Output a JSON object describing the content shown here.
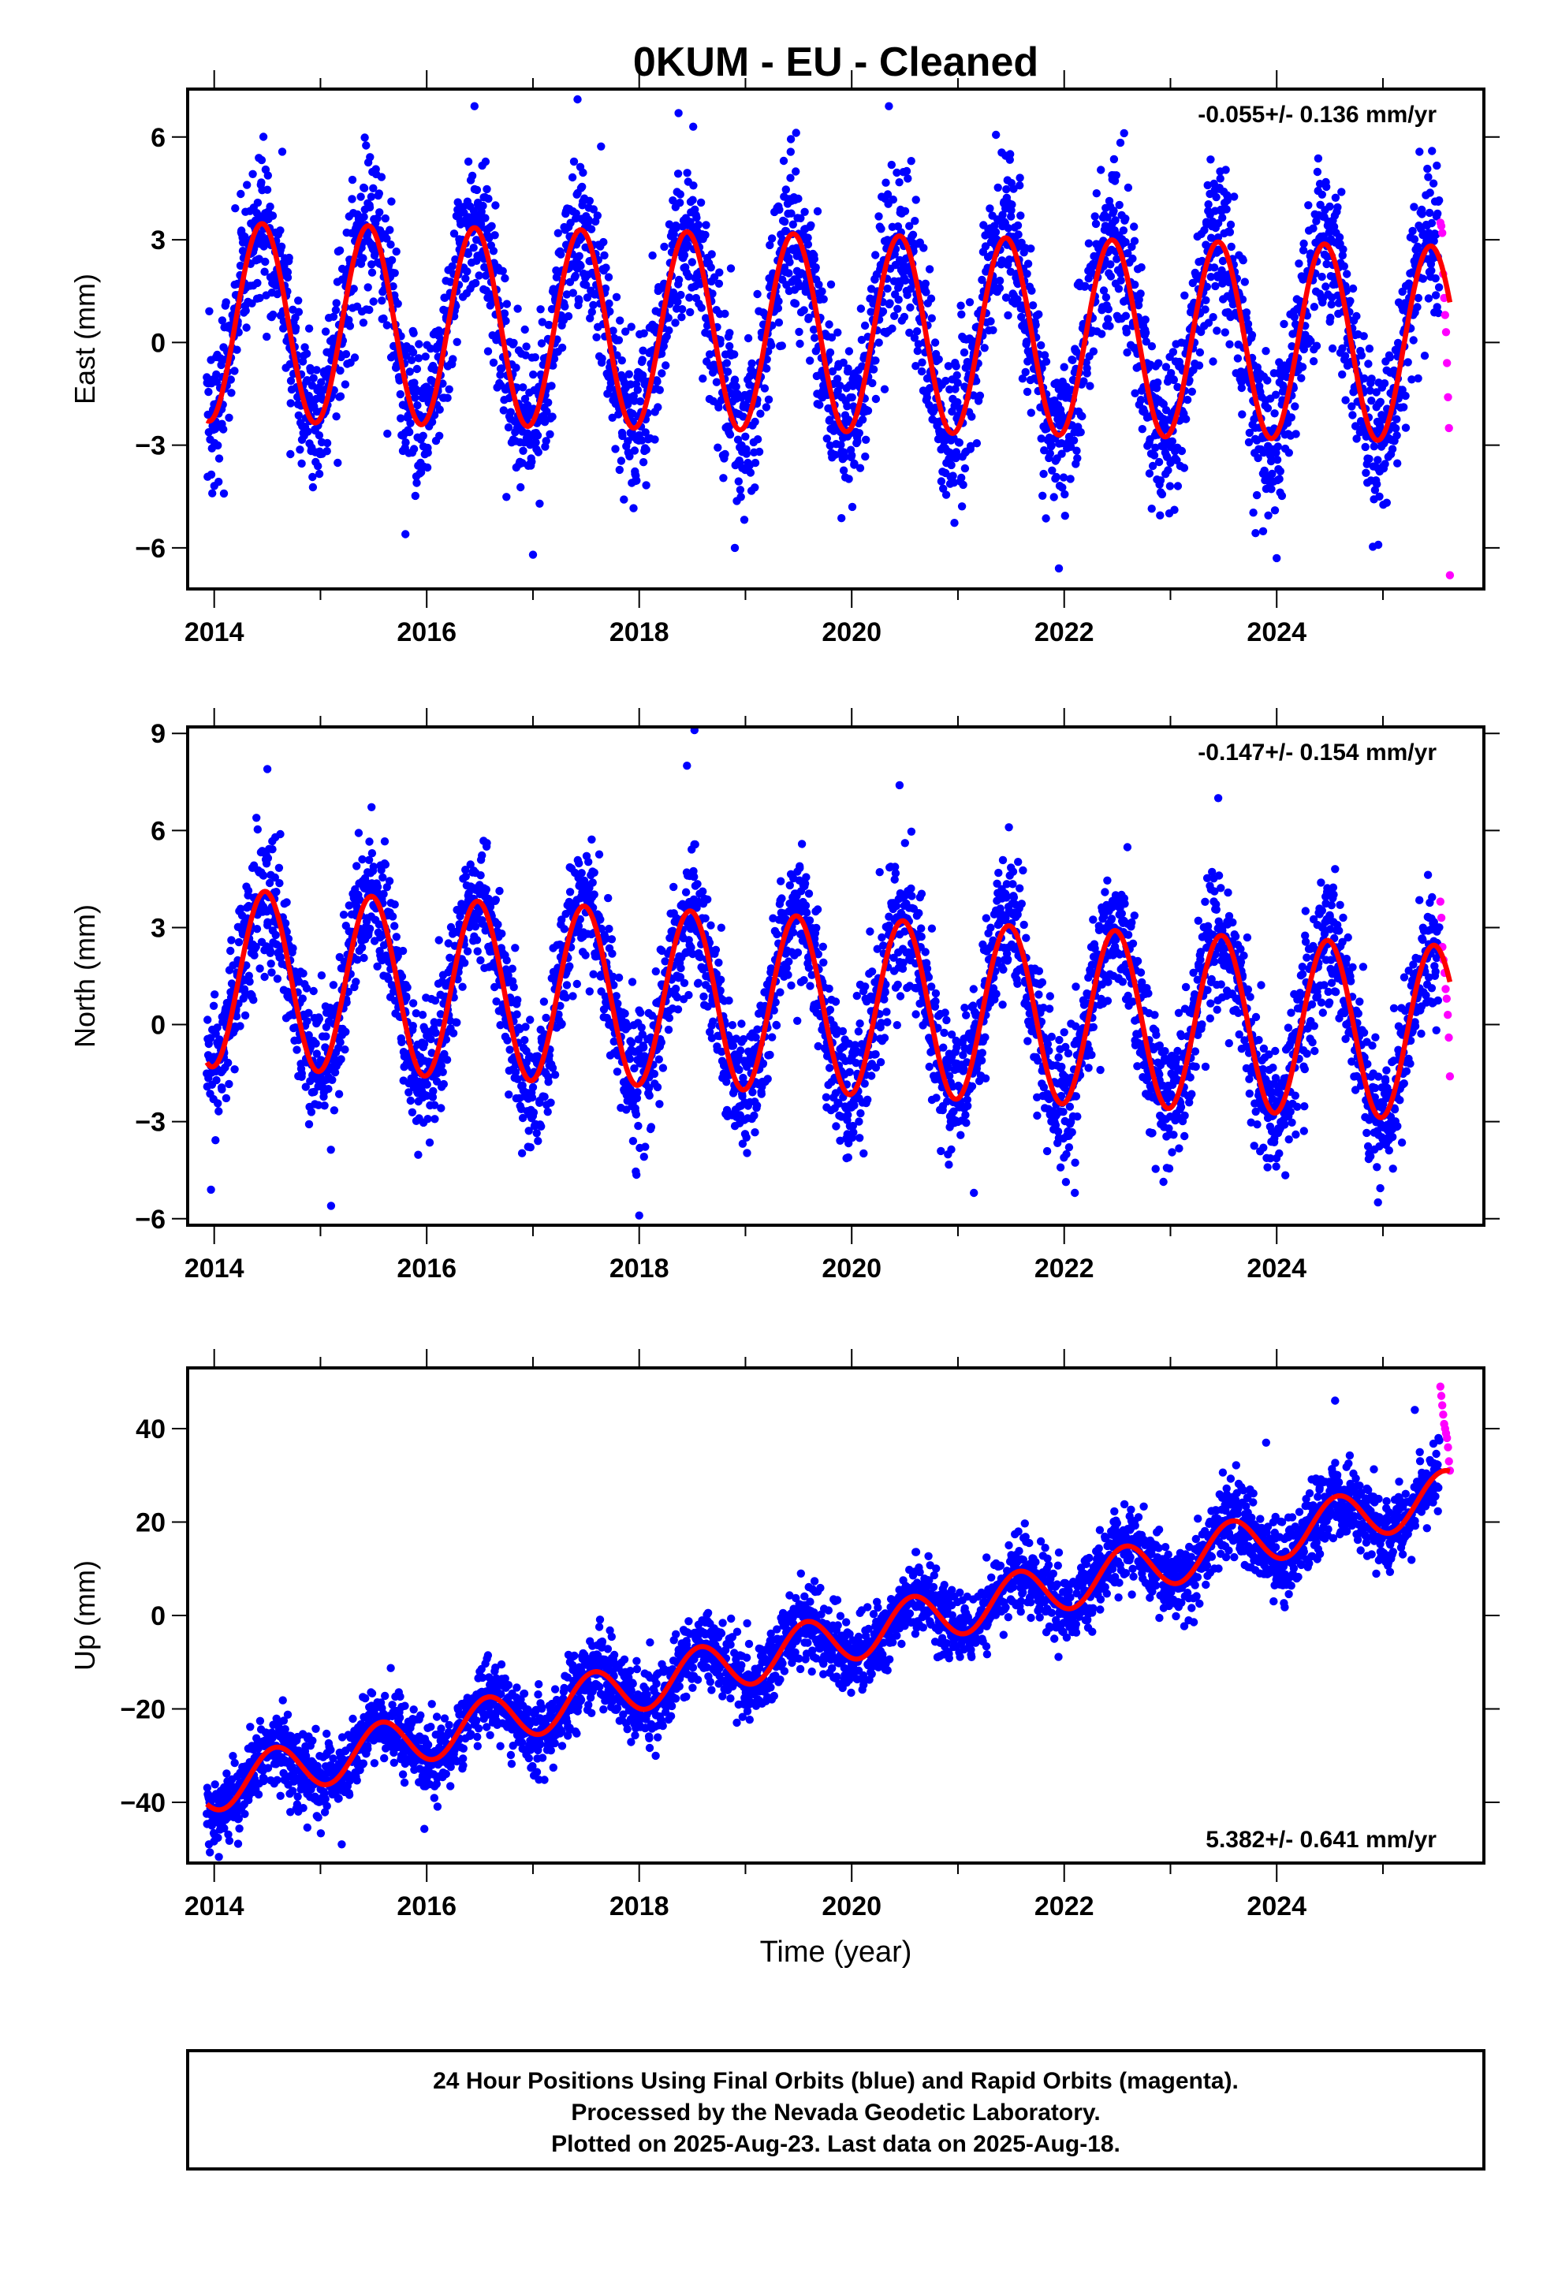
{
  "title": "0KUM  - EU - Cleaned",
  "x_axis_label": "Time (year)",
  "caption": {
    "line1": "24 Hour Positions Using Final Orbits (blue) and Rapid Orbits (magenta).",
    "line2": "Processed by the Nevada Geodetic Laboratory.",
    "line3": "Plotted on 2025-Aug-23. Last data on 2025-Aug-18."
  },
  "colors": {
    "final_orbits": "#0000ff",
    "rapid_orbits": "#ff00ff",
    "model_fit": "#ff0000",
    "frame": "#000000"
  },
  "chart_data": [
    {
      "type": "scatter",
      "component": "east",
      "ylabel": "East (mm)",
      "rate_text": "-0.055+/- 0.136 mm/yr",
      "xlim": [
        2013.75,
        2025.95
      ],
      "ylim": [
        -7.2,
        7.4
      ],
      "xticks": [
        2014,
        2016,
        2018,
        2020,
        2022,
        2024
      ],
      "yticks": [
        -6,
        -3,
        0,
        3,
        6
      ],
      "grid": false,
      "model": {
        "offset": 0.6,
        "trend_mm_per_yr": -0.055,
        "amplitude_start": 2.9,
        "amplitude_end": 2.85,
        "peak_phase": 0.45,
        "series_start": 2013.93,
        "series_end": 2025.63
      },
      "series": [
        {
          "orbits": "final",
          "start": 2013.93,
          "end": 2025.53,
          "scatter_sd": 1.15,
          "points": 3600
        },
        {
          "orbits": "rapid",
          "start": 2025.54,
          "end": 2025.63,
          "values": [
            3.5,
            3.4,
            3.2,
            2.0,
            1.3,
            0.8,
            0.3,
            -0.6,
            -1.6,
            -2.5,
            -6.8
          ]
        }
      ],
      "outliers": [
        [
          2016.45,
          6.9
        ],
        [
          2017.42,
          7.1
        ],
        [
          2018.37,
          6.7
        ],
        [
          2020.35,
          6.9
        ],
        [
          2021.95,
          -6.6
        ],
        [
          2017.0,
          -6.2
        ],
        [
          2024.0,
          -6.3
        ],
        [
          2018.9,
          -6.0
        ],
        [
          2015.8,
          -5.6
        ]
      ]
    },
    {
      "type": "scatter",
      "component": "north",
      "ylabel": "North (mm)",
      "rate_text": "-0.147+/- 0.154 mm/yr",
      "xlim": [
        2013.75,
        2025.95
      ],
      "ylim": [
        -6.2,
        9.2
      ],
      "xticks": [
        2014,
        2016,
        2018,
        2020,
        2022,
        2024
      ],
      "yticks": [
        -6,
        -3,
        0,
        3,
        6,
        9
      ],
      "grid": false,
      "model": {
        "offset": 1.45,
        "trend_mm_per_yr": -0.147,
        "amplitude_start": 2.75,
        "amplitude_end": 2.7,
        "peak_phase": 0.48,
        "series_start": 2013.93,
        "series_end": 2025.63
      },
      "series": [
        {
          "orbits": "final",
          "start": 2013.93,
          "end": 2025.53,
          "scatter_sd": 1.05,
          "points": 3600
        },
        {
          "orbits": "rapid",
          "start": 2025.54,
          "end": 2025.63,
          "values": [
            3.8,
            3.3,
            2.4,
            2.0,
            1.6,
            1.1,
            0.8,
            0.3,
            -0.4,
            -1.6
          ]
        }
      ],
      "outliers": [
        [
          2014.5,
          7.9
        ],
        [
          2018.52,
          9.1
        ],
        [
          2018.45,
          8.0
        ],
        [
          2020.45,
          7.4
        ],
        [
          2023.45,
          7.0
        ],
        [
          2018.0,
          -5.9
        ],
        [
          2015.1,
          -5.6
        ],
        [
          2013.97,
          -5.1
        ],
        [
          2021.15,
          -5.2
        ],
        [
          2022.1,
          -5.2
        ]
      ]
    },
    {
      "type": "scatter",
      "component": "up",
      "ylabel": "Up (mm)",
      "rate_text": "5.382+/- 0.641 mm/yr",
      "xlim": [
        2013.75,
        2025.95
      ],
      "ylim": [
        -53,
        53
      ],
      "xticks": [
        2014,
        2016,
        2018,
        2020,
        2022,
        2024
      ],
      "yticks": [
        -40,
        -20,
        0,
        20,
        40
      ],
      "grid": false,
      "model": {
        "offset": -37.0,
        "trend_mm_per_yr": 5.382,
        "amplitude_start": 5.3,
        "amplitude_end": 5.3,
        "peak_phase": 0.57,
        "series_start": 2013.93,
        "series_end": 2025.63
      },
      "series": [
        {
          "orbits": "final",
          "start": 2013.93,
          "end": 2025.53,
          "scatter_sd": 4.0,
          "points": 3600
        },
        {
          "orbits": "rapid",
          "start": 2025.54,
          "end": 2025.63,
          "values": [
            49,
            47,
            45,
            43,
            41,
            40,
            39,
            38,
            36,
            33,
            31
          ]
        }
      ],
      "outliers": [
        [
          2013.95,
          -49
        ],
        [
          2015.2,
          -49
        ],
        [
          2024.55,
          46
        ],
        [
          2023.9,
          37
        ],
        [
          2025.3,
          44
        ]
      ]
    }
  ]
}
